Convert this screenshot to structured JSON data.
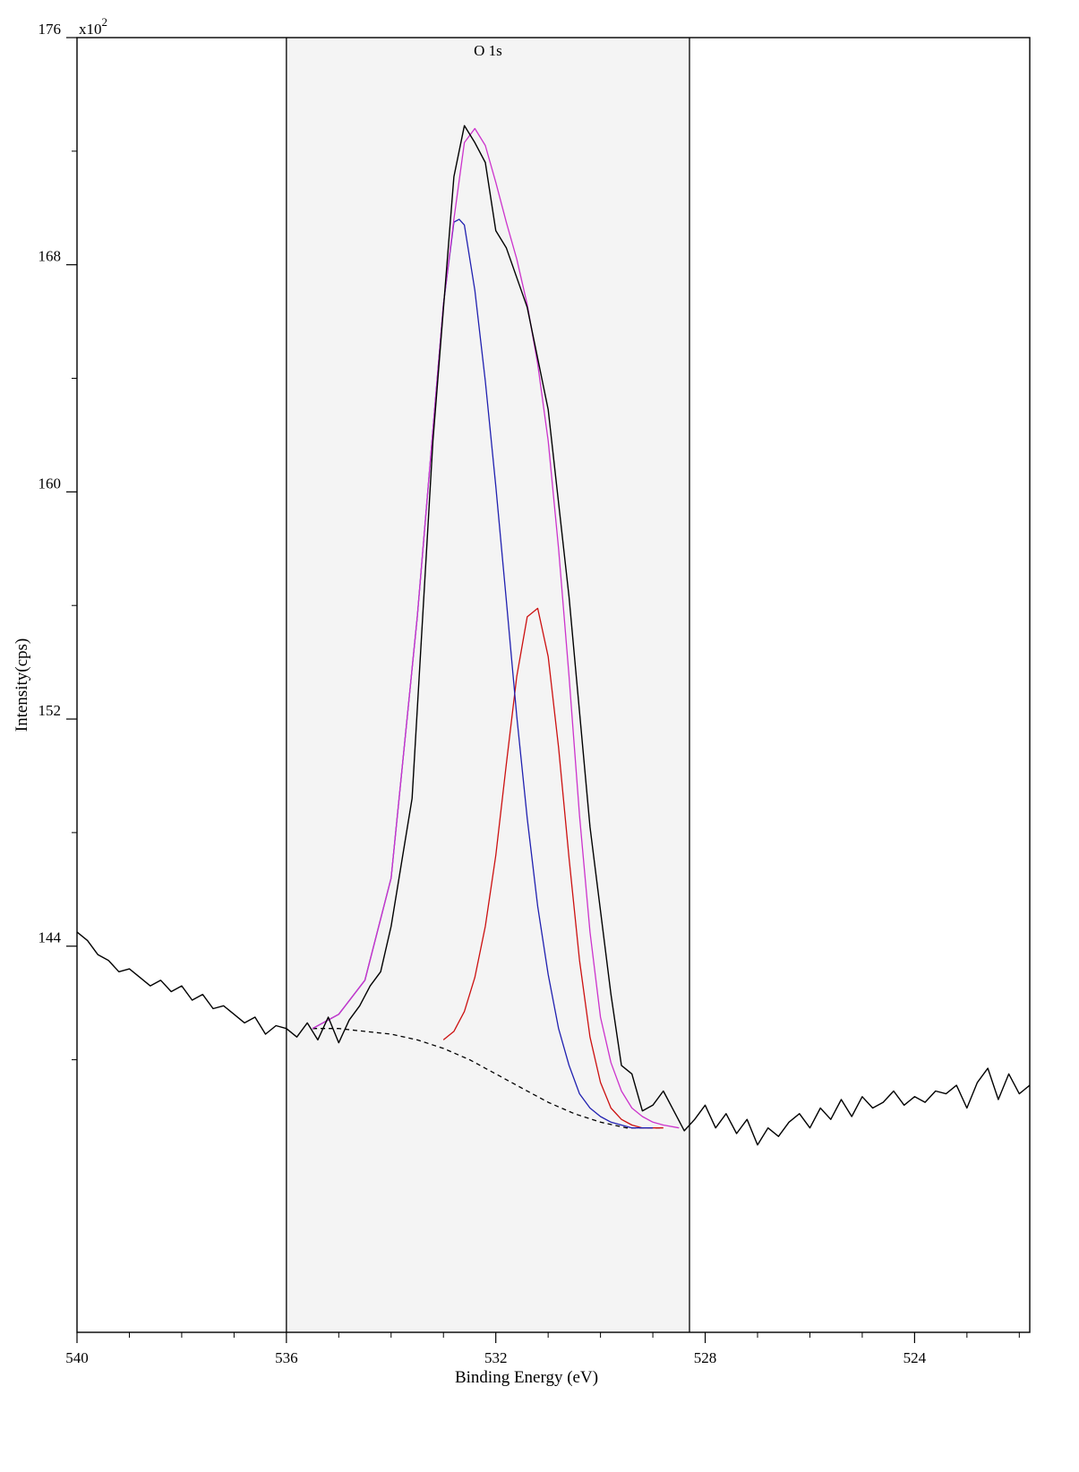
{
  "chart_data": {
    "type": "line",
    "title": "",
    "region_label": "O 1s",
    "xlabel": "Binding Energy (eV)",
    "ylabel": "Intensity(cps)",
    "y_multiplier_label": "x10",
    "y_multiplier_exp": "2",
    "xlim": [
      540,
      521.8
    ],
    "ylim": [
      130.4,
      176
    ],
    "x_ticks": [
      540,
      536,
      532,
      528,
      524
    ],
    "x_tick_labels": [
      "540",
      "536",
      "532",
      "528",
      "524"
    ],
    "y_ticks": [
      144,
      152,
      160,
      168,
      176
    ],
    "y_tick_labels": [
      "144",
      "152",
      "160",
      "168",
      "176"
    ],
    "region_bounds": [
      536,
      528.3
    ],
    "grid": false,
    "colors": {
      "raw": "#000000",
      "envelope": "#cc33cc",
      "component_1": "#2020b0",
      "component_2": "#cc1010",
      "background": "#000000",
      "region_fill": "#f4f4f4"
    },
    "series": [
      {
        "key": "raw",
        "x": [
          540.0,
          539.8,
          539.6,
          539.4,
          539.2,
          539.0,
          538.8,
          538.6,
          538.4,
          538.2,
          538.0,
          537.8,
          537.6,
          537.4,
          537.2,
          537.0,
          536.8,
          536.6,
          536.4,
          536.2,
          536.0,
          535.8,
          535.6,
          535.4,
          535.2,
          535.0,
          534.8,
          534.6,
          534.4,
          534.2,
          534.0,
          533.6,
          533.2,
          532.8,
          532.6,
          532.4,
          532.2,
          532.0,
          531.8,
          531.4,
          531.0,
          530.6,
          530.2,
          529.8,
          529.6,
          529.4,
          529.2,
          529.0,
          528.8,
          528.6,
          528.4,
          528.2,
          528.0,
          527.8,
          527.6,
          527.4,
          527.2,
          527.0,
          526.8,
          526.6,
          526.4,
          526.2,
          526.0,
          525.8,
          525.6,
          525.4,
          525.2,
          525.0,
          524.8,
          524.6,
          524.4,
          524.2,
          524.0,
          523.8,
          523.6,
          523.4,
          523.2,
          523.0,
          522.8,
          522.6,
          522.4,
          522.2,
          522.0,
          521.8
        ],
        "values": [
          144.5,
          144.2,
          143.7,
          143.5,
          143.1,
          143.2,
          142.9,
          142.6,
          142.8,
          142.4,
          142.6,
          142.1,
          142.3,
          141.8,
          141.9,
          141.6,
          141.3,
          141.5,
          140.9,
          141.2,
          141.1,
          140.8,
          141.3,
          140.7,
          141.5,
          140.6,
          141.4,
          141.9,
          142.6,
          143.1,
          144.7,
          149.2,
          161.8,
          171.1,
          172.9,
          172.3,
          171.6,
          169.2,
          168.6,
          166.5,
          162.9,
          156.3,
          148.2,
          142.3,
          139.8,
          139.5,
          138.2,
          138.4,
          138.9,
          138.2,
          137.5,
          137.9,
          138.4,
          137.6,
          138.1,
          137.4,
          137.9,
          137.0,
          137.6,
          137.3,
          137.8,
          138.1,
          137.6,
          138.3,
          137.9,
          138.6,
          138.0,
          138.7,
          138.3,
          138.5,
          138.9,
          138.4,
          138.7,
          138.5,
          138.9,
          138.8,
          139.1,
          138.3,
          139.2,
          139.7,
          138.6,
          139.5,
          138.8,
          139.1
        ]
      },
      {
        "key": "envelope",
        "x": [
          535.5,
          535.0,
          534.5,
          534.0,
          533.5,
          533.0,
          532.8,
          532.6,
          532.4,
          532.2,
          532.0,
          531.8,
          531.6,
          531.4,
          531.2,
          531.0,
          530.8,
          530.6,
          530.4,
          530.2,
          530.0,
          529.8,
          529.6,
          529.4,
          529.2,
          529.0,
          528.8,
          528.5
        ],
        "values": [
          141.1,
          141.6,
          142.8,
          146.4,
          155.6,
          166.6,
          169.6,
          172.3,
          172.8,
          172.2,
          170.9,
          169.5,
          168.2,
          166.6,
          164.5,
          161.8,
          158.0,
          153.5,
          148.6,
          144.5,
          141.5,
          139.9,
          138.9,
          138.3,
          138.0,
          137.8,
          137.7,
          137.6
        ]
      },
      {
        "key": "component_1",
        "x": [
          535.5,
          535.0,
          534.5,
          534.0,
          533.5,
          533.0,
          532.8,
          532.7,
          532.6,
          532.4,
          532.2,
          532.0,
          531.8,
          531.6,
          531.4,
          531.2,
          531.0,
          530.8,
          530.6,
          530.4,
          530.2,
          530.0,
          529.8,
          529.6,
          529.4,
          529.2,
          529.0
        ],
        "values": [
          141.1,
          141.6,
          142.8,
          146.4,
          155.6,
          166.6,
          169.5,
          169.6,
          169.4,
          167.1,
          163.9,
          160.2,
          156.2,
          152.1,
          148.5,
          145.4,
          143.0,
          141.1,
          139.8,
          138.8,
          138.3,
          138.0,
          137.8,
          137.7,
          137.6,
          137.6,
          137.6
        ]
      },
      {
        "key": "component_2",
        "x": [
          533.0,
          532.8,
          532.6,
          532.4,
          532.2,
          532.0,
          531.8,
          531.6,
          531.4,
          531.2,
          531.0,
          530.8,
          530.6,
          530.4,
          530.2,
          530.0,
          529.8,
          529.6,
          529.4,
          529.2,
          529.0,
          528.8
        ],
        "values": [
          140.7,
          141.0,
          141.7,
          142.9,
          144.7,
          147.2,
          150.4,
          153.5,
          155.6,
          155.9,
          154.2,
          151.0,
          147.1,
          143.5,
          140.8,
          139.2,
          138.3,
          137.9,
          137.7,
          137.6,
          137.6,
          137.6
        ]
      },
      {
        "key": "background",
        "dashed": true,
        "x": [
          535.5,
          535.0,
          534.5,
          534.0,
          533.5,
          533.0,
          532.5,
          532.0,
          531.5,
          531.0,
          530.5,
          530.0,
          529.5,
          529.0,
          528.8
        ],
        "values": [
          141.1,
          141.1,
          141.0,
          140.9,
          140.7,
          140.4,
          140.0,
          139.5,
          139.0,
          138.5,
          138.1,
          137.8,
          137.6,
          137.6,
          137.6
        ]
      }
    ]
  }
}
